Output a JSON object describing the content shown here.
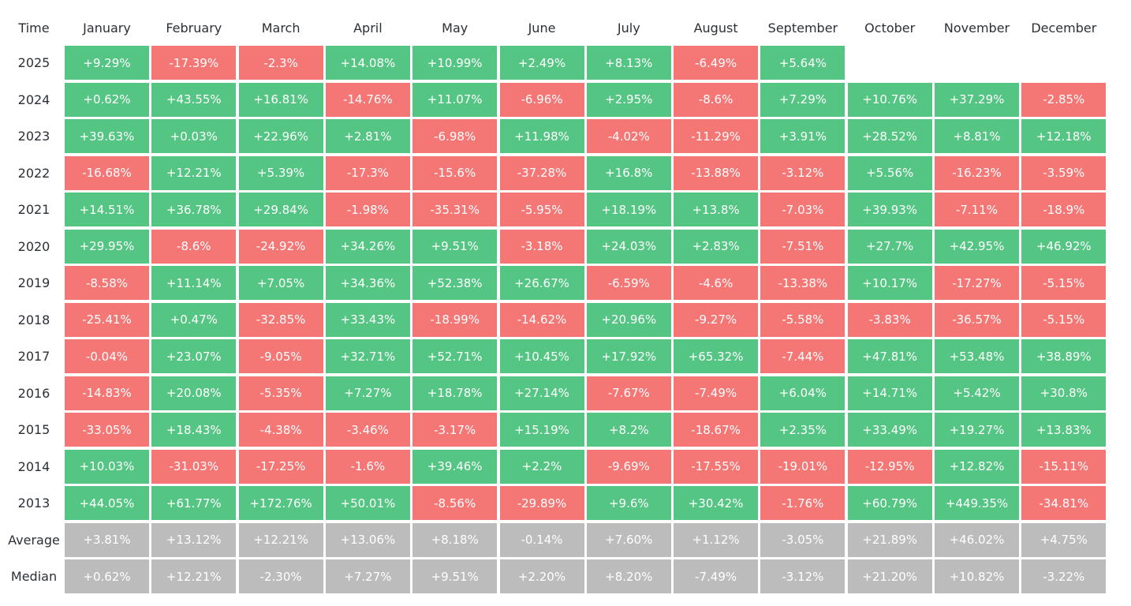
{
  "chart_data": {
    "type": "heatmap",
    "corner_label": "Time",
    "columns": [
      "January",
      "February",
      "March",
      "April",
      "May",
      "June",
      "July",
      "August",
      "September",
      "October",
      "November",
      "December"
    ],
    "rows": [
      {
        "label": "2025",
        "values": [
          "+9.29%",
          "-17.39%",
          "-2.3%",
          "+14.08%",
          "+10.99%",
          "+2.49%",
          "+8.13%",
          "-6.49%",
          "+5.64%",
          null,
          null,
          null
        ]
      },
      {
        "label": "2024",
        "values": [
          "+0.62%",
          "+43.55%",
          "+16.81%",
          "-14.76%",
          "+11.07%",
          "-6.96%",
          "+2.95%",
          "-8.6%",
          "+7.29%",
          "+10.76%",
          "+37.29%",
          "-2.85%"
        ]
      },
      {
        "label": "2023",
        "values": [
          "+39.63%",
          "+0.03%",
          "+22.96%",
          "+2.81%",
          "-6.98%",
          "+11.98%",
          "-4.02%",
          "-11.29%",
          "+3.91%",
          "+28.52%",
          "+8.81%",
          "+12.18%"
        ]
      },
      {
        "label": "2022",
        "values": [
          "-16.68%",
          "+12.21%",
          "+5.39%",
          "-17.3%",
          "-15.6%",
          "-37.28%",
          "+16.8%",
          "-13.88%",
          "-3.12%",
          "+5.56%",
          "-16.23%",
          "-3.59%"
        ]
      },
      {
        "label": "2021",
        "values": [
          "+14.51%",
          "+36.78%",
          "+29.84%",
          "-1.98%",
          "-35.31%",
          "-5.95%",
          "+18.19%",
          "+13.8%",
          "-7.03%",
          "+39.93%",
          "-7.11%",
          "-18.9%"
        ]
      },
      {
        "label": "2020",
        "values": [
          "+29.95%",
          "-8.6%",
          "-24.92%",
          "+34.26%",
          "+9.51%",
          "-3.18%",
          "+24.03%",
          "+2.83%",
          "-7.51%",
          "+27.7%",
          "+42.95%",
          "+46.92%"
        ]
      },
      {
        "label": "2019",
        "values": [
          "-8.58%",
          "+11.14%",
          "+7.05%",
          "+34.36%",
          "+52.38%",
          "+26.67%",
          "-6.59%",
          "-4.6%",
          "-13.38%",
          "+10.17%",
          "-17.27%",
          "-5.15%"
        ]
      },
      {
        "label": "2018",
        "values": [
          "-25.41%",
          "+0.47%",
          "-32.85%",
          "+33.43%",
          "-18.99%",
          "-14.62%",
          "+20.96%",
          "-9.27%",
          "-5.58%",
          "-3.83%",
          "-36.57%",
          "-5.15%"
        ]
      },
      {
        "label": "2017",
        "values": [
          "-0.04%",
          "+23.07%",
          "-9.05%",
          "+32.71%",
          "+52.71%",
          "+10.45%",
          "+17.92%",
          "+65.32%",
          "-7.44%",
          "+47.81%",
          "+53.48%",
          "+38.89%"
        ]
      },
      {
        "label": "2016",
        "values": [
          "-14.83%",
          "+20.08%",
          "-5.35%",
          "+7.27%",
          "+18.78%",
          "+27.14%",
          "-7.67%",
          "-7.49%",
          "+6.04%",
          "+14.71%",
          "+5.42%",
          "+30.8%"
        ]
      },
      {
        "label": "2015",
        "values": [
          "-33.05%",
          "+18.43%",
          "-4.38%",
          "-3.46%",
          "-3.17%",
          "+15.19%",
          "+8.2%",
          "-18.67%",
          "+2.35%",
          "+33.49%",
          "+19.27%",
          "+13.83%"
        ]
      },
      {
        "label": "2014",
        "values": [
          "+10.03%",
          "-31.03%",
          "-17.25%",
          "-1.6%",
          "+39.46%",
          "+2.2%",
          "-9.69%",
          "-17.55%",
          "-19.01%",
          "-12.95%",
          "+12.82%",
          "-15.11%"
        ]
      },
      {
        "label": "2013",
        "values": [
          "+44.05%",
          "+61.77%",
          "+172.76%",
          "+50.01%",
          "-8.56%",
          "-29.89%",
          "+9.6%",
          "+30.42%",
          "-1.76%",
          "+60.79%",
          "+449.35%",
          "-34.81%"
        ]
      }
    ],
    "summary_rows": [
      {
        "label": "Average",
        "values": [
          "+3.81%",
          "+13.12%",
          "+12.21%",
          "+13.06%",
          "+8.18%",
          "-0.14%",
          "+7.60%",
          "+1.12%",
          "-3.05%",
          "+21.89%",
          "+46.02%",
          "+4.75%"
        ]
      },
      {
        "label": "Median",
        "values": [
          "+0.62%",
          "+12.21%",
          "-2.30%",
          "+7.27%",
          "+9.51%",
          "+2.20%",
          "+8.20%",
          "-7.49%",
          "-3.12%",
          "+21.20%",
          "+10.82%",
          "-3.22%"
        ]
      }
    ],
    "colors": {
      "positive": "#55c584",
      "negative": "#f47776",
      "summary": "#bcbcbc",
      "text_on_cell": "#ffffff",
      "label_text": "#2b2f36"
    }
  }
}
